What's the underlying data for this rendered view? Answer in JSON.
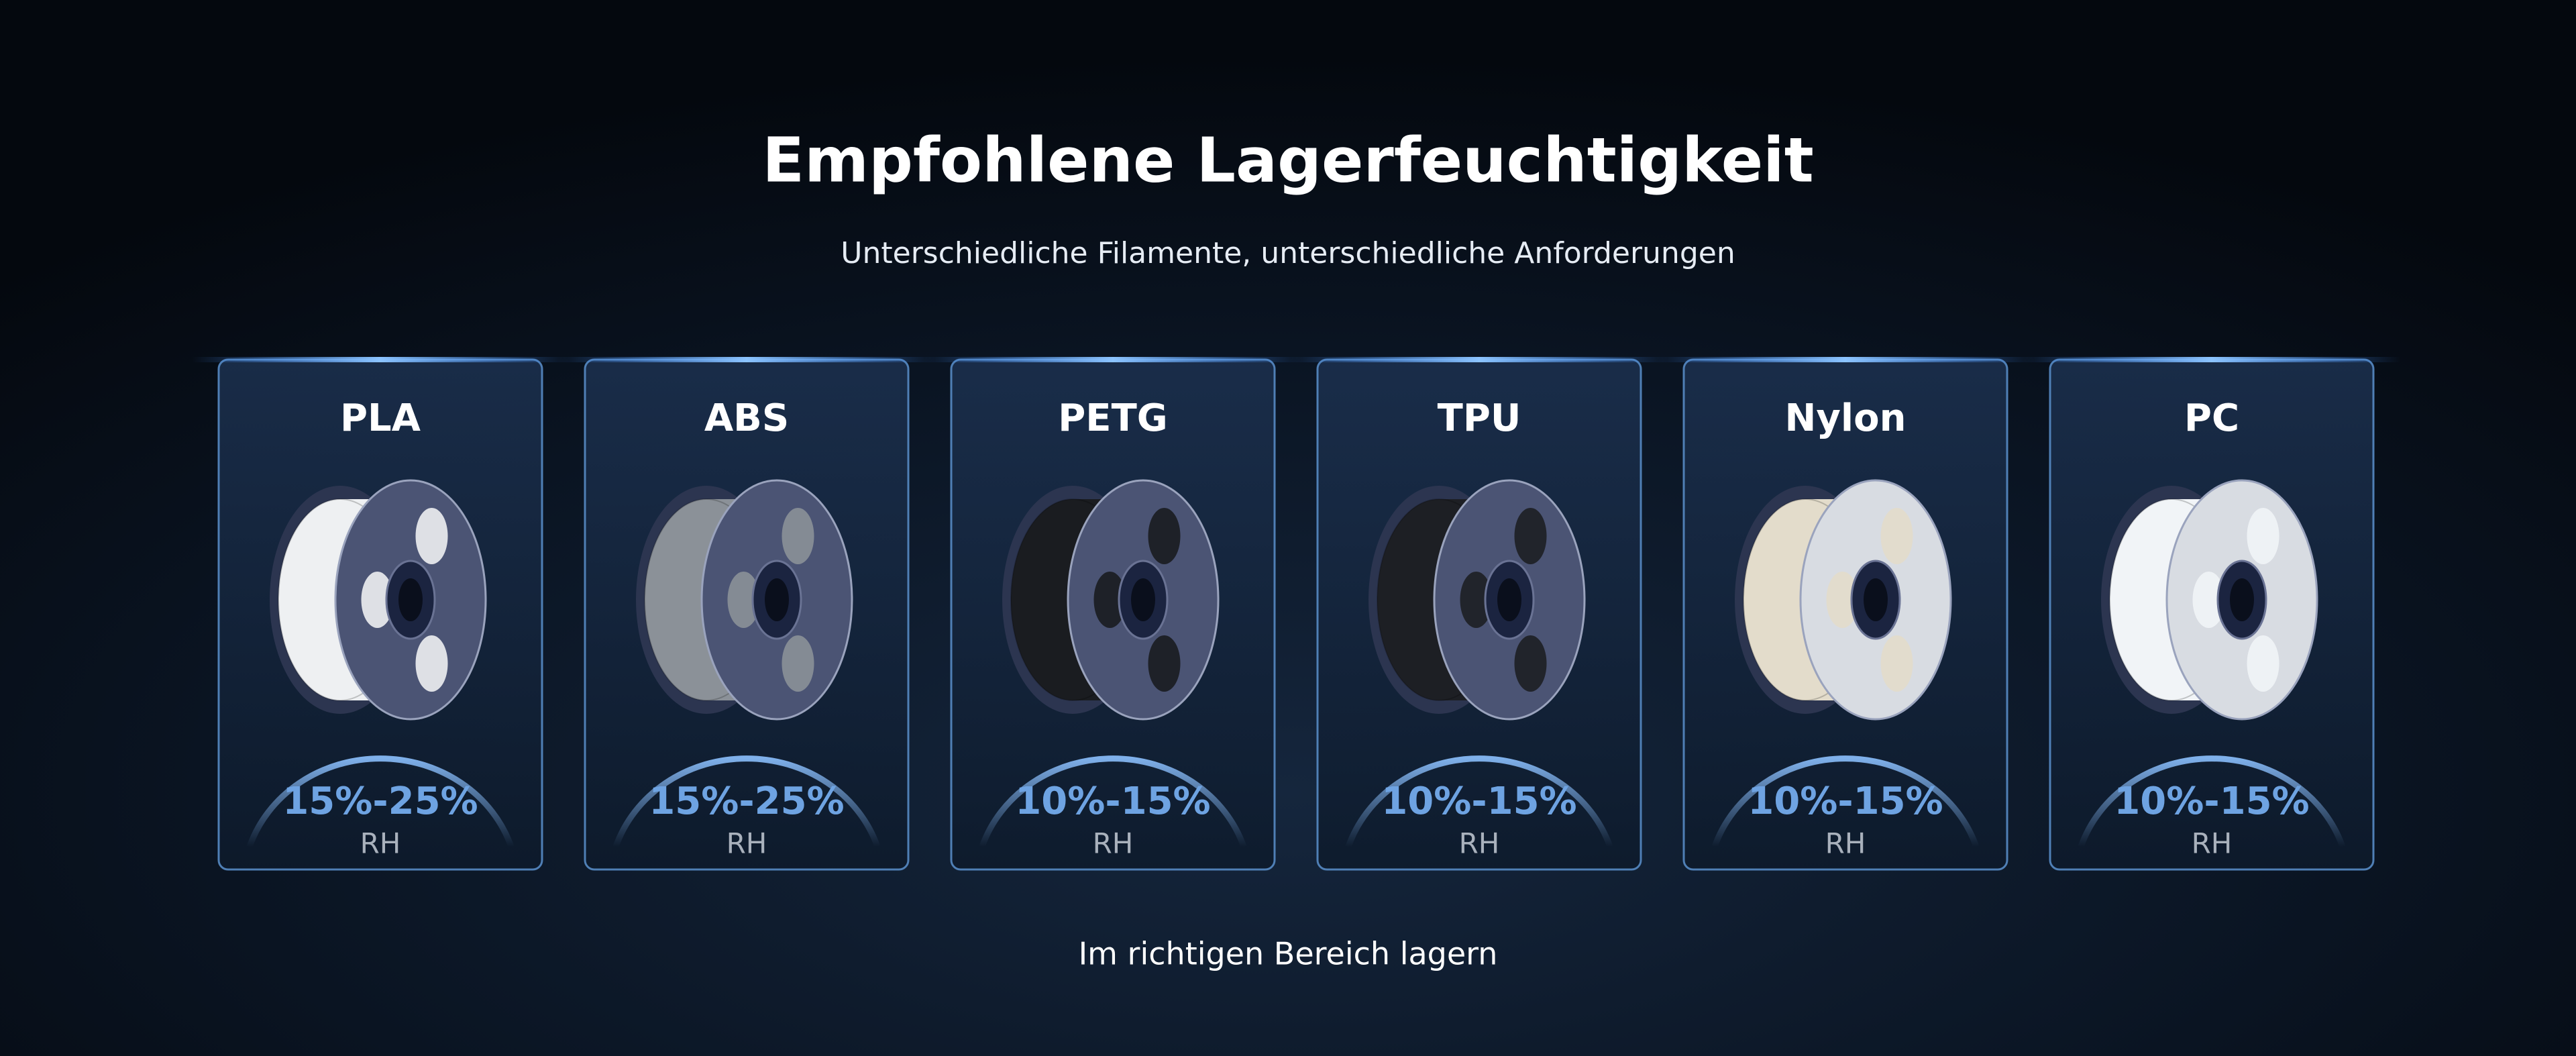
{
  "header": {
    "title": "Empfohlene Lagerfeuchtigkeit",
    "subtitle": "Unterschiedliche Filamente, unterschiedliche Anforderungen"
  },
  "cards": [
    {
      "name": "PLA",
      "range": "15%-25%",
      "unit": "RH"
    },
    {
      "name": "ABS",
      "range": "15%-25%",
      "unit": "RH"
    },
    {
      "name": "PETG",
      "range": "10%-15%",
      "unit": "RH"
    },
    {
      "name": "TPU",
      "range": "10%-15%",
      "unit": "RH"
    },
    {
      "name": "Nylon",
      "range": "10%-15%",
      "unit": "RH"
    },
    {
      "name": "PC",
      "range": "10%-15%",
      "unit": "RH"
    }
  ],
  "footer": "Im richtigen Bereich lagern"
}
